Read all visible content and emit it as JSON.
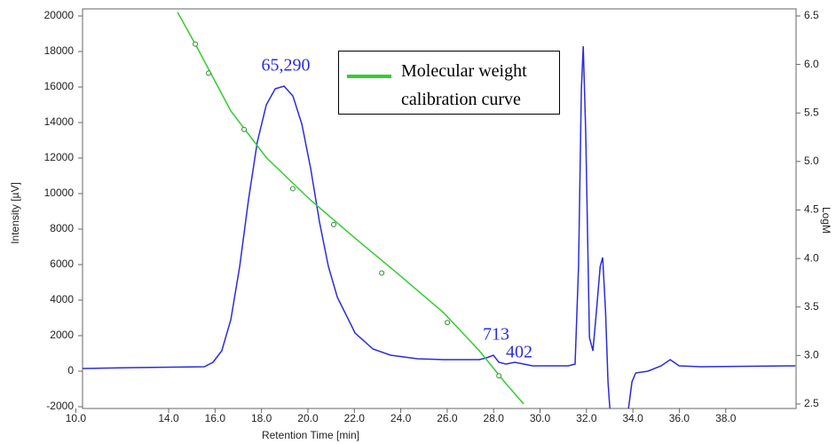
{
  "chart_data": {
    "type": "line",
    "x_label": "Retention Time [min]",
    "y_label": "Intensity [µV]",
    "y2_label": "LogM",
    "xlim": [
      10.29,
      41.03
    ],
    "ylim": [
      -2100,
      20400
    ],
    "y2lim": [
      2.454,
      6.573
    ],
    "xticks": [
      {
        "value": 10,
        "label": "10.0"
      },
      {
        "value": 14,
        "label": "14.0"
      },
      {
        "value": 16,
        "label": "16.0"
      },
      {
        "value": 18,
        "label": "18.0"
      },
      {
        "value": 20,
        "label": "20.0"
      },
      {
        "value": 22,
        "label": "22.0"
      },
      {
        "value": 24,
        "label": "24.0"
      },
      {
        "value": 26,
        "label": "26.0"
      },
      {
        "value": 28,
        "label": "28.0"
      },
      {
        "value": 30,
        "label": "30.0"
      },
      {
        "value": 32,
        "label": "32.0"
      },
      {
        "value": 34,
        "label": "34.0"
      },
      {
        "value": 36,
        "label": "36.0"
      },
      {
        "value": 38,
        "label": "38.0"
      }
    ],
    "yticks": [
      -2000,
      0,
      2000,
      4000,
      6000,
      8000,
      10000,
      12000,
      14000,
      16000,
      18000,
      20000
    ],
    "y2ticks": [
      2.5,
      {
        "value": 3,
        "label": "3.0"
      },
      3.5,
      {
        "value": 4,
        "label": "4.0"
      },
      4.5,
      {
        "value": 5,
        "label": "5.0"
      },
      5.5,
      {
        "value": 6,
        "label": "6.0"
      },
      6.5
    ],
    "series": [
      {
        "color": "#2b2bdd",
        "x": [
          10.29,
          12.47,
          15.53,
          15.91,
          16.29,
          16.68,
          17.06,
          17.44,
          17.82,
          18.21,
          18.59,
          18.97,
          19.35,
          19.74,
          20.12,
          20.5,
          20.88,
          21.27,
          22.03,
          22.8,
          23.56,
          24.71,
          25.85,
          27.38,
          27.69,
          27.99,
          28.23,
          28.53,
          28.91,
          29.3,
          29.68,
          31.21,
          31.51,
          31.66,
          31.78,
          31.86,
          31.97,
          32.13,
          32.28,
          32.43,
          32.59,
          32.7,
          32.82,
          32.93,
          33.01,
          33.5,
          33.81,
          33.96,
          34.12,
          34.65,
          35.22,
          35.61,
          35.99,
          36.94,
          41.0
        ],
        "values": [
          150,
          200,
          250,
          500,
          1150,
          2900,
          5900,
          9650,
          12900,
          15000,
          15900,
          16050,
          15500,
          13900,
          11400,
          8400,
          5900,
          4150,
          2150,
          1250,
          900,
          700,
          650,
          650,
          750,
          900,
          500,
          400,
          500,
          400,
          300,
          300,
          400,
          5900,
          15900,
          18300,
          13400,
          1900,
          1150,
          3400,
          5900,
          6400,
          3400,
          -600,
          -2100,
          null,
          -2100,
          -600,
          -100,
          0,
          300,
          650,
          300,
          250,
          300
        ]
      },
      {
        "name": "Molecular weight calibration curve",
        "color": "#33cc33",
        "axis": "y2",
        "x": [
          14.38,
          15.15,
          16.68,
          18.21,
          20.12,
          22.03,
          23.94,
          25.85,
          27.38,
          28.53,
          29.3
        ],
        "values": [
          6.54,
          6.21,
          5.52,
          5.04,
          4.6,
          4.21,
          3.83,
          3.44,
          3.05,
          2.71,
          2.5
        ]
      },
      {
        "color": "#33cc33",
        "axis": "y2",
        "marker": "circle",
        "x": [
          15.15,
          15.72,
          17.25,
          19.35,
          21.11,
          23.18,
          26.01,
          28.23
        ],
        "values": [
          6.21,
          5.91,
          5.33,
          4.72,
          4.35,
          3.85,
          3.34,
          2.79
        ]
      }
    ],
    "annotations": [
      "65,290",
      "713",
      "402"
    ]
  }
}
